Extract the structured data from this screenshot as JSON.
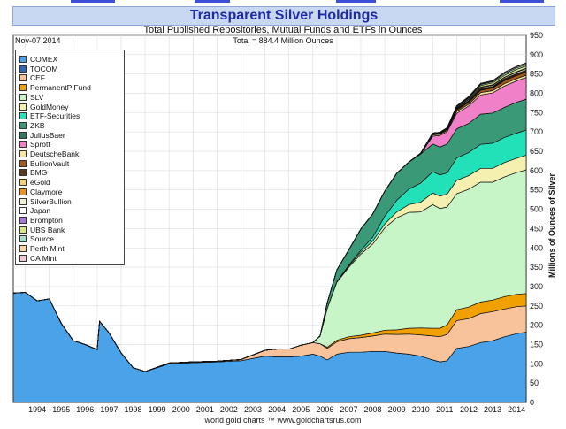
{
  "title": "Transparent Silver Holdings",
  "subtitle": "Total Published Repositories, Mutual Funds and ETFs in Ounces",
  "date_label": "Nov-07 2014",
  "total_label": "Total = 884.4 Million Ounces",
  "footer": "world gold charts ™ www.goldchartsrus.com",
  "colors": {
    "title_text": "#1f2aa8",
    "title_bg": "#c8d8f2",
    "background": "#ffffff"
  },
  "chart_data": {
    "type": "area",
    "stacked": true,
    "title": "Transparent Silver Holdings",
    "subtitle": "Total Published Repositories, Mutual Funds and ETFs in Ounces",
    "ylabel": "Millions of Ounces of Silver",
    "xlabel": "",
    "ylim": [
      0,
      950
    ],
    "yticks": [
      0,
      50,
      100,
      150,
      200,
      250,
      300,
      350,
      400,
      450,
      500,
      550,
      600,
      650,
      700,
      750,
      800,
      850,
      900,
      950
    ],
    "xlim": [
      1993.5,
      2014.9
    ],
    "xticks": [
      "1994",
      "1995",
      "1996",
      "1997",
      "1998",
      "1999",
      "2000",
      "2001",
      "2002",
      "2003",
      "2004",
      "2005",
      "2006",
      "2007",
      "2008",
      "2009",
      "2010",
      "2011",
      "2012",
      "2013",
      "2014"
    ],
    "grid": true,
    "legend_position": "top-left",
    "x": [
      1993.5,
      1994.0,
      1994.5,
      1995.0,
      1995.5,
      1996.0,
      1996.5,
      1997.0,
      1997.1,
      1997.5,
      1998.0,
      1998.5,
      1999.0,
      2000.0,
      2001.0,
      2002.0,
      2003.0,
      2004.0,
      2004.5,
      2005.0,
      2005.5,
      2006.0,
      2006.3,
      2006.6,
      2007.0,
      2007.5,
      2008.0,
      2008.5,
      2009.0,
      2009.5,
      2010.0,
      2010.5,
      2011.0,
      2011.3,
      2011.6,
      2012.0,
      2012.5,
      2013.0,
      2013.5,
      2014.0,
      2014.5,
      2014.9
    ],
    "series": [
      {
        "name": "COMEX",
        "color": "#4aa3e8",
        "values": [
          283,
          285,
          263,
          268,
          205,
          160,
          150,
          137,
          210,
          180,
          128,
          90,
          80,
          100,
          103,
          105,
          108,
          120,
          118,
          118,
          120,
          125,
          120,
          110,
          125,
          130,
          130,
          132,
          132,
          128,
          125,
          120,
          110,
          105,
          108,
          140,
          145,
          155,
          160,
          170,
          178,
          182
        ]
      },
      {
        "name": "TOCOM",
        "color": "#2f66b8",
        "values": [
          0,
          0,
          0,
          0,
          0,
          0,
          0,
          0,
          0,
          0,
          0,
          0,
          0,
          0,
          0,
          0,
          0,
          0,
          0,
          0,
          0,
          0,
          0,
          0,
          0,
          0,
          0,
          0,
          0,
          0,
          0,
          0,
          0,
          0,
          0,
          0,
          0,
          0,
          0,
          0,
          0,
          0
        ]
      },
      {
        "name": "CEF",
        "color": "#f8c29a",
        "values": [
          0,
          0,
          0,
          0,
          0,
          0,
          0,
          0,
          0,
          0,
          0,
          0,
          0,
          2,
          2,
          2,
          3,
          15,
          20,
          20,
          28,
          30,
          32,
          30,
          32,
          35,
          38,
          40,
          45,
          48,
          52,
          55,
          62,
          65,
          68,
          72,
          72,
          75,
          75,
          72,
          70,
          68
        ]
      },
      {
        "name": "PermanentP Fund",
        "color": "#f0a000",
        "values": [
          0,
          0,
          0,
          0,
          0,
          0,
          0,
          0,
          0,
          0,
          0,
          0,
          0,
          0,
          0,
          0,
          0,
          0,
          0,
          0,
          0,
          0,
          0,
          3,
          4,
          5,
          6,
          8,
          10,
          12,
          15,
          18,
          20,
          22,
          25,
          28,
          30,
          30,
          30,
          32,
          32,
          32
        ]
      },
      {
        "name": "SLV",
        "color": "#c8f5c8",
        "values": [
          0,
          0,
          0,
          0,
          0,
          0,
          0,
          0,
          0,
          0,
          0,
          0,
          0,
          0,
          0,
          0,
          0,
          0,
          0,
          0,
          0,
          0,
          20,
          100,
          150,
          180,
          210,
          230,
          265,
          290,
          300,
          300,
          320,
          310,
          305,
          300,
          305,
          310,
          305,
          310,
          315,
          320
        ]
      },
      {
        "name": "GoldMoney",
        "color": "#f5f0b0",
        "values": [
          0,
          0,
          0,
          0,
          0,
          0,
          0,
          0,
          0,
          0,
          0,
          0,
          0,
          0,
          0,
          0,
          0,
          0,
          0,
          0,
          0,
          0,
          0,
          0,
          2,
          3,
          5,
          8,
          10,
          15,
          20,
          25,
          30,
          32,
          33,
          35,
          35,
          36,
          36,
          37,
          37,
          38
        ]
      },
      {
        "name": "ETF-Securities",
        "color": "#22e0b8",
        "values": [
          0,
          0,
          0,
          0,
          0,
          0,
          0,
          0,
          0,
          0,
          0,
          0,
          0,
          0,
          0,
          0,
          0,
          0,
          0,
          0,
          0,
          0,
          0,
          0,
          0,
          2,
          5,
          10,
          20,
          30,
          40,
          50,
          55,
          55,
          55,
          58,
          60,
          62,
          65,
          65,
          65,
          65
        ]
      },
      {
        "name": "ZKB",
        "color": "#3a9a78",
        "values": [
          0,
          0,
          0,
          0,
          0,
          0,
          0,
          0,
          0,
          0,
          0,
          0,
          0,
          0,
          0,
          0,
          0,
          0,
          0,
          0,
          0,
          0,
          0,
          15,
          30,
          40,
          55,
          60,
          65,
          70,
          70,
          75,
          72,
          72,
          75,
          75,
          75,
          78,
          78,
          78,
          80,
          80
        ]
      },
      {
        "name": "JuliusBaer",
        "color": "#2d7a60",
        "values": [
          0,
          0,
          0,
          0,
          0,
          0,
          0,
          0,
          0,
          0,
          0,
          0,
          0,
          0,
          0,
          0,
          0,
          0,
          0,
          0,
          0,
          0,
          0,
          0,
          0,
          0,
          0,
          0,
          0,
          0,
          0,
          0,
          0,
          0,
          0,
          0,
          0,
          0,
          0,
          0,
          0,
          0
        ]
      },
      {
        "name": "Sprott",
        "color": "#f080c8",
        "values": [
          0,
          0,
          0,
          0,
          0,
          0,
          0,
          0,
          0,
          0,
          0,
          0,
          0,
          0,
          0,
          0,
          0,
          0,
          0,
          0,
          0,
          0,
          0,
          0,
          0,
          0,
          0,
          0,
          0,
          0,
          0,
          0,
          20,
          30,
          32,
          40,
          45,
          50,
          52,
          55,
          55,
          56
        ]
      },
      {
        "name": "DeutscheBank",
        "color": "#f8e4a0",
        "values": [
          0,
          0,
          0,
          0,
          0,
          0,
          0,
          0,
          0,
          0,
          0,
          0,
          0,
          0,
          0,
          0,
          0,
          0,
          0,
          0,
          0,
          0,
          0,
          0,
          0,
          0,
          0,
          0,
          0,
          0,
          0,
          2,
          3,
          3,
          3,
          5,
          5,
          6,
          6,
          6,
          6,
          6
        ]
      },
      {
        "name": "BullionVault",
        "color": "#a05a1e",
        "values": [
          0,
          0,
          0,
          0,
          0,
          0,
          0,
          0,
          0,
          0,
          0,
          0,
          0,
          0,
          0,
          0,
          0,
          0,
          0,
          0,
          0,
          0,
          0,
          0,
          0,
          0,
          0,
          0,
          0,
          0,
          0,
          0,
          2,
          2,
          3,
          4,
          5,
          6,
          7,
          8,
          8,
          8
        ]
      },
      {
        "name": "BMG",
        "color": "#5c3a1a",
        "values": [
          0,
          0,
          0,
          0,
          0,
          0,
          0,
          0,
          0,
          0,
          0,
          0,
          0,
          0,
          0,
          0,
          0,
          0,
          0,
          0,
          0,
          0,
          0,
          0,
          0,
          0,
          0,
          0,
          0,
          0,
          0,
          0,
          1,
          1,
          1,
          2,
          2,
          2,
          2,
          3,
          3,
          3
        ]
      },
      {
        "name": "eGold",
        "color": "#f5d27a",
        "values": [
          0,
          0,
          0,
          0,
          0,
          0,
          0,
          0,
          0,
          0,
          0,
          0,
          0,
          0,
          0,
          0,
          0,
          0,
          0,
          0,
          0,
          0,
          0,
          0,
          0,
          0,
          0,
          0,
          0,
          0,
          0,
          0,
          0,
          0,
          0,
          0,
          0,
          0,
          0,
          0,
          0,
          0
        ]
      },
      {
        "name": "Claymore",
        "color": "#f09020",
        "values": [
          0,
          0,
          0,
          0,
          0,
          0,
          0,
          0,
          0,
          0,
          0,
          0,
          0,
          0,
          0,
          0,
          0,
          0,
          0,
          0,
          0,
          0,
          0,
          0,
          0,
          0,
          0,
          0,
          0,
          0,
          0,
          0,
          1,
          1,
          2,
          2,
          2,
          2,
          2,
          2,
          2,
          2
        ]
      },
      {
        "name": "SilverBullion",
        "color": "#f0f0d0",
        "values": [
          0,
          0,
          0,
          0,
          0,
          0,
          0,
          0,
          0,
          0,
          0,
          0,
          0,
          0,
          0,
          0,
          0,
          0,
          0,
          0,
          0,
          0,
          0,
          0,
          0,
          0,
          0,
          0,
          0,
          0,
          0,
          0,
          1,
          1,
          1,
          2,
          3,
          3,
          3,
          3,
          4,
          4
        ]
      },
      {
        "name": "Japan",
        "color": "#ffffff",
        "values": [
          0,
          0,
          0,
          0,
          0,
          0,
          0,
          0,
          0,
          0,
          0,
          0,
          0,
          0,
          0,
          0,
          0,
          0,
          0,
          0,
          0,
          0,
          0,
          0,
          0,
          0,
          0,
          0,
          0,
          0,
          0,
          0,
          0,
          0,
          0,
          0,
          0,
          0,
          0,
          0,
          0,
          0
        ]
      },
      {
        "name": "Brompton",
        "color": "#a87ad8",
        "values": [
          0,
          0,
          0,
          0,
          0,
          0,
          0,
          0,
          0,
          0,
          0,
          0,
          0,
          0,
          0,
          0,
          0,
          0,
          0,
          0,
          0,
          0,
          0,
          0,
          0,
          0,
          0,
          0,
          0,
          0,
          0,
          0,
          0,
          0,
          0,
          1,
          1,
          1,
          1,
          1,
          1,
          1
        ]
      },
      {
        "name": "UBS Bank",
        "color": "#d8e888",
        "values": [
          0,
          0,
          0,
          0,
          0,
          0,
          0,
          0,
          0,
          0,
          0,
          0,
          0,
          0,
          0,
          0,
          0,
          0,
          0,
          0,
          0,
          0,
          0,
          0,
          0,
          0,
          0,
          0,
          0,
          0,
          0,
          0,
          0,
          0,
          0,
          2,
          3,
          4,
          5,
          5,
          6,
          6
        ]
      },
      {
        "name": "Source",
        "color": "#a8e0d0",
        "values": [
          0,
          0,
          0,
          0,
          0,
          0,
          0,
          0,
          0,
          0,
          0,
          0,
          0,
          0,
          0,
          0,
          0,
          0,
          0,
          0,
          0,
          0,
          0,
          0,
          0,
          0,
          0,
          0,
          0,
          0,
          0,
          0,
          0,
          0,
          0,
          0,
          2,
          3,
          3,
          4,
          4,
          4
        ]
      },
      {
        "name": "Perth Mint",
        "color": "#f8d8a8",
        "values": [
          0,
          0,
          0,
          0,
          0,
          0,
          0,
          0,
          0,
          0,
          0,
          0,
          0,
          0,
          0,
          0,
          0,
          0,
          0,
          0,
          0,
          0,
          0,
          0,
          0,
          0,
          0,
          0,
          0,
          0,
          0,
          0,
          0,
          0,
          0,
          1,
          1,
          2,
          2,
          3,
          3,
          3
        ]
      },
      {
        "name": "CA Mint",
        "color": "#f4c8d8",
        "values": [
          0,
          0,
          0,
          0,
          0,
          0,
          0,
          0,
          0,
          0,
          0,
          0,
          0,
          0,
          0,
          0,
          0,
          0,
          0,
          0,
          0,
          0,
          0,
          0,
          0,
          0,
          0,
          0,
          0,
          0,
          0,
          0,
          0,
          0,
          0,
          1,
          1,
          1,
          1,
          1,
          1,
          1
        ]
      }
    ]
  }
}
